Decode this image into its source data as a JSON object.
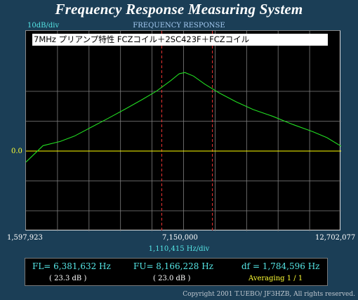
{
  "app": {
    "title": "Frequency Response Measuring System",
    "scale_label": "10dB/div",
    "panel_title": "FREQUENCY RESPONSE",
    "caption": "7MHz  プリアンプ特性  FCZコイル＋2SC423F＋FCZコイル",
    "zero_label": "0.0",
    "hz_per_div": "1,110,415  Hz/div",
    "copyright": "Copyright 2001 T.UEBO/ JF3HZB, All rights reserved."
  },
  "results": {
    "fl": "FL= 6,381,632  Hz",
    "fu": "FU= 8,166,228  Hz",
    "df": "df = 1,784,596  Hz",
    "fl_db": "( 23.3 dB )",
    "fu_db": "( 23.0 dB )",
    "averaging": "Averaging   1 / 1"
  },
  "colors": {
    "background": "#1b3e56",
    "plot_background": "#000000",
    "grid": "#808080",
    "trace": "#22dd22",
    "reference_line": "#ffff00",
    "marker_lines": "#ee3333"
  },
  "chart_data": {
    "type": "line",
    "title": "FREQUENCY RESPONSE",
    "xlabel": "1,110,415  Hz/div",
    "ylabel": "10dB/div",
    "x_ticks": [
      "1,597,923",
      "7,150,000",
      "12,702,077"
    ],
    "xlim": [
      1597923,
      12702077
    ],
    "y_divisions": 10,
    "y_zero_label": "0.0",
    "reference_level_db": 0,
    "grid": true,
    "markers_hz": [
      6381632,
      8166228
    ],
    "series": [
      {
        "x": [
          1597923,
          2200000,
          2800000,
          3300000,
          3900000,
          4500000,
          5100000,
          5700000,
          6200000,
          6700000,
          7000000,
          7200000,
          7500000,
          7900000,
          8400000,
          9000000,
          9600000,
          10300000,
          11000000,
          11700000,
          12200000,
          12702077
        ],
        "y": [
          -3.7,
          1.8,
          3.2,
          5.0,
          8.0,
          11.0,
          14.1,
          17.3,
          20.1,
          23.6,
          25.9,
          26.3,
          25.1,
          22.4,
          19.5,
          16.5,
          13.9,
          11.6,
          8.9,
          6.5,
          4.5,
          1.6
        ]
      }
    ]
  }
}
